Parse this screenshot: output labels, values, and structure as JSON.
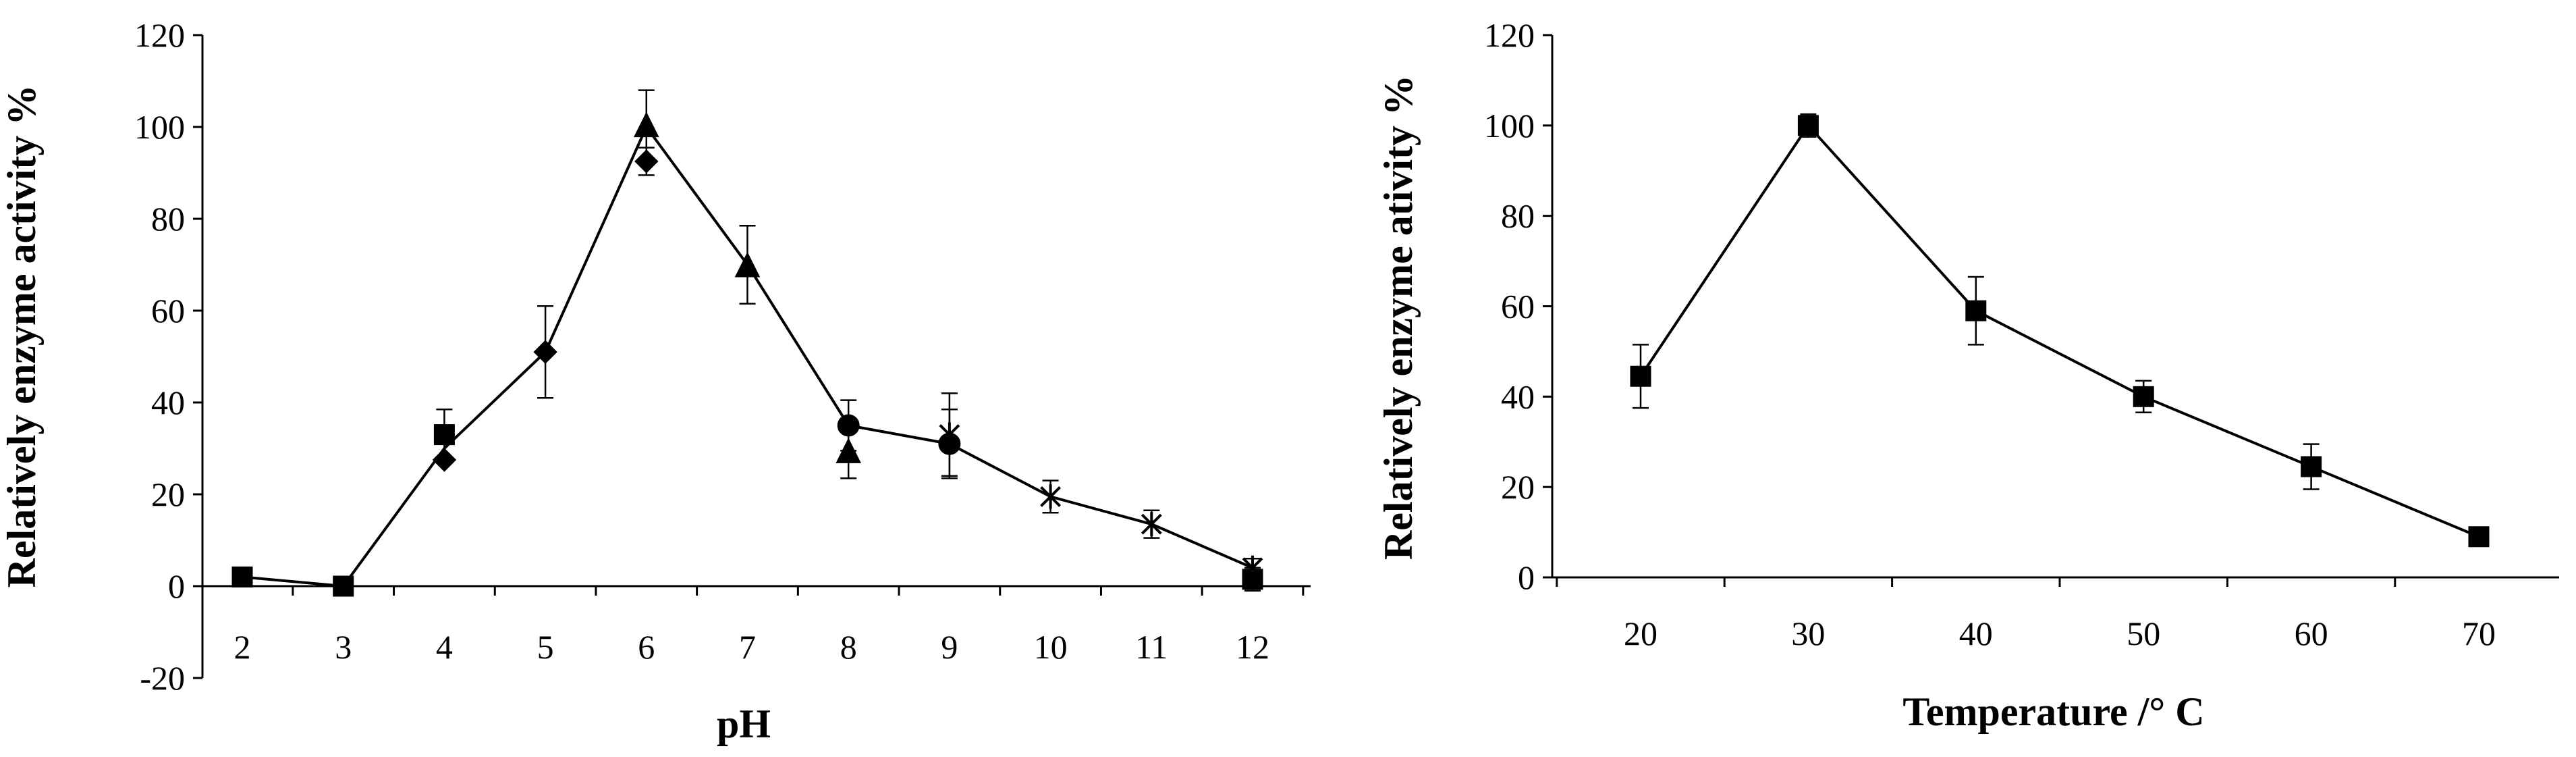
{
  "chart_data": [
    {
      "type": "line",
      "title": "",
      "xlabel": "pH",
      "ylabel": "Relatively enzyme activity %",
      "categories": [
        "2",
        "3",
        "4",
        "5",
        "6",
        "7",
        "8",
        "9",
        "10",
        "11",
        "12"
      ],
      "ylim": [
        -20,
        120
      ],
      "yticks": [
        "-20",
        "0",
        "20",
        "40",
        "60",
        "80",
        "100",
        "120"
      ],
      "grid": false,
      "legend": "none",
      "line_values": [
        2,
        0,
        30,
        51,
        100,
        70,
        35,
        31,
        19.5,
        13.5,
        4
      ],
      "points": [
        {
          "x": 2,
          "y": 2,
          "marker": "square",
          "err": 0
        },
        {
          "x": 3,
          "y": 0,
          "marker": "square",
          "err": 0
        },
        {
          "x": 4,
          "y": 33,
          "marker": "square",
          "err": 5.5
        },
        {
          "x": 4,
          "y": 27.5,
          "marker": "diamond",
          "err": 0
        },
        {
          "x": 5,
          "y": 51,
          "marker": "diamond",
          "err": 10
        },
        {
          "x": 6,
          "y": 92.5,
          "marker": "diamond",
          "err": 3
        },
        {
          "x": 6,
          "y": 100.5,
          "marker": "triangle",
          "err": 7.5
        },
        {
          "x": 7,
          "y": 70,
          "marker": "triangle",
          "err": 8.5
        },
        {
          "x": 8,
          "y": 29.5,
          "marker": "triangle",
          "err": 6
        },
        {
          "x": 8,
          "y": 35,
          "marker": "circle",
          "err": 5.5
        },
        {
          "x": 9,
          "y": 31,
          "marker": "circle",
          "err": 7.5
        },
        {
          "x": 9,
          "y": 33,
          "marker": "cross",
          "err": 9
        },
        {
          "x": 10,
          "y": 19.5,
          "marker": "cross",
          "err": 3.5
        },
        {
          "x": 11,
          "y": 13.5,
          "marker": "cross",
          "err": 3
        },
        {
          "x": 12,
          "y": 4,
          "marker": "cross",
          "err": 2
        },
        {
          "x": 12,
          "y": 1.5,
          "marker": "square",
          "err": 2.5
        }
      ]
    },
    {
      "type": "line",
      "title": "",
      "xlabel": "Temperature /° C",
      "ylabel": "Relatively enzyme ativity %",
      "categories": [
        "20",
        "30",
        "40",
        "50",
        "60",
        "70"
      ],
      "ylim": [
        0,
        120
      ],
      "yticks": [
        "0",
        "20",
        "40",
        "60",
        "80",
        "100",
        "120"
      ],
      "grid": false,
      "legend": "none",
      "line_values": [
        44.5,
        100,
        59,
        40,
        24.5,
        9
      ],
      "points": [
        {
          "x": 20,
          "y": 44.5,
          "marker": "square",
          "err": 7
        },
        {
          "x": 30,
          "y": 100,
          "marker": "square",
          "err": 2.5
        },
        {
          "x": 40,
          "y": 59,
          "marker": "square",
          "err": 7.5
        },
        {
          "x": 50,
          "y": 40,
          "marker": "square",
          "err": 3.5
        },
        {
          "x": 60,
          "y": 24.5,
          "marker": "square",
          "err": 5
        },
        {
          "x": 70,
          "y": 9,
          "marker": "square",
          "err": 0
        }
      ]
    }
  ]
}
